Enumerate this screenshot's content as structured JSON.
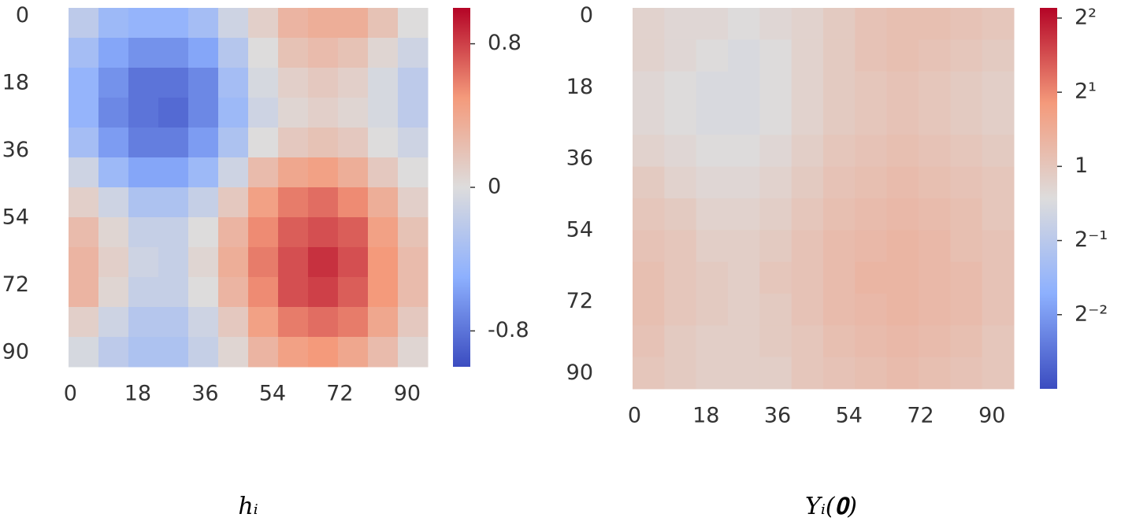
{
  "chart_data": [
    {
      "type": "heatmap",
      "title": "hᵢ",
      "colormap": "coolwarm",
      "y_inverted": true,
      "x": [
        4,
        12,
        20,
        28,
        36,
        44,
        52,
        60,
        68,
        76,
        84,
        92
      ],
      "y": [
        4,
        12,
        20,
        28,
        36,
        44,
        52,
        60,
        68,
        76,
        84,
        92
      ],
      "z": [
        [
          -0.2,
          -0.4,
          -0.45,
          -0.45,
          -0.35,
          -0.1,
          0.1,
          0.3,
          0.35,
          0.35,
          0.2,
          0.0
        ],
        [
          -0.35,
          -0.55,
          -0.65,
          -0.65,
          -0.55,
          -0.25,
          0.0,
          0.2,
          0.25,
          0.2,
          0.05,
          -0.1
        ],
        [
          -0.45,
          -0.65,
          -0.8,
          -0.8,
          -0.7,
          -0.35,
          -0.05,
          0.1,
          0.15,
          0.1,
          -0.05,
          -0.2
        ],
        [
          -0.45,
          -0.7,
          -0.8,
          -0.85,
          -0.7,
          -0.4,
          -0.1,
          0.05,
          0.1,
          0.05,
          -0.05,
          -0.2
        ],
        [
          -0.35,
          -0.6,
          -0.75,
          -0.75,
          -0.6,
          -0.3,
          0.0,
          0.15,
          0.2,
          0.15,
          0.0,
          -0.1
        ],
        [
          -0.1,
          -0.4,
          -0.55,
          -0.55,
          -0.4,
          -0.1,
          0.25,
          0.4,
          0.45,
          0.35,
          0.15,
          0.0
        ],
        [
          0.1,
          -0.1,
          -0.3,
          -0.3,
          -0.15,
          0.15,
          0.45,
          0.6,
          0.65,
          0.55,
          0.35,
          0.1
        ],
        [
          0.25,
          0.05,
          -0.15,
          -0.15,
          0.0,
          0.3,
          0.55,
          0.7,
          0.75,
          0.7,
          0.45,
          0.2
        ],
        [
          0.3,
          0.1,
          -0.1,
          -0.15,
          0.05,
          0.35,
          0.6,
          0.75,
          0.85,
          0.75,
          0.5,
          0.25
        ],
        [
          0.3,
          0.05,
          -0.15,
          -0.15,
          0.0,
          0.3,
          0.55,
          0.75,
          0.8,
          0.7,
          0.5,
          0.25
        ],
        [
          0.1,
          -0.1,
          -0.25,
          -0.25,
          -0.1,
          0.15,
          0.45,
          0.6,
          0.65,
          0.6,
          0.4,
          0.15
        ],
        [
          -0.05,
          -0.2,
          -0.3,
          -0.3,
          -0.15,
          0.05,
          0.3,
          0.45,
          0.5,
          0.4,
          0.25,
          0.05
        ]
      ],
      "xlim": [
        0,
        96
      ],
      "ylim": [
        0,
        96
      ],
      "xticks": [
        0,
        18,
        36,
        54,
        72,
        90
      ],
      "yticks": [
        0,
        18,
        36,
        54,
        72,
        90
      ],
      "colorbar": {
        "clim": [
          -1.0,
          1.0
        ],
        "log": false,
        "ticks": [
          -0.8,
          0,
          0.8
        ]
      }
    },
    {
      "type": "heatmap",
      "title": "Yᵢ(𝟎)",
      "colormap": "coolwarm",
      "y_inverted": true,
      "x": [
        4,
        12,
        20,
        28,
        36,
        44,
        52,
        60,
        68,
        76,
        84,
        92
      ],
      "y": [
        4,
        12,
        20,
        28,
        36,
        44,
        52,
        60,
        68,
        76,
        84,
        92
      ],
      "z": [
        [
          0.85,
          0.8,
          0.8,
          0.75,
          0.8,
          0.85,
          0.95,
          1.05,
          1.1,
          1.1,
          1.05,
          1.0
        ],
        [
          0.85,
          0.8,
          0.75,
          0.7,
          0.75,
          0.85,
          0.95,
          1.05,
          1.1,
          1.05,
          1.0,
          0.95
        ],
        [
          0.8,
          0.75,
          0.7,
          0.7,
          0.75,
          0.85,
          0.95,
          1.0,
          1.05,
          1.0,
          0.95,
          0.9
        ],
        [
          0.8,
          0.75,
          0.7,
          0.7,
          0.75,
          0.85,
          0.95,
          1.0,
          1.05,
          1.0,
          0.95,
          0.9
        ],
        [
          0.85,
          0.8,
          0.75,
          0.75,
          0.8,
          0.9,
          1.0,
          1.05,
          1.1,
          1.05,
          1.0,
          0.95
        ],
        [
          0.95,
          0.85,
          0.8,
          0.8,
          0.85,
          0.95,
          1.05,
          1.1,
          1.15,
          1.1,
          1.05,
          1.0
        ],
        [
          1.0,
          0.95,
          0.85,
          0.85,
          0.9,
          1.0,
          1.1,
          1.15,
          1.2,
          1.15,
          1.1,
          1.0
        ],
        [
          1.05,
          1.0,
          0.9,
          0.9,
          0.95,
          1.05,
          1.15,
          1.2,
          1.25,
          1.2,
          1.1,
          1.05
        ],
        [
          1.1,
          1.0,
          0.95,
          0.9,
          1.0,
          1.05,
          1.15,
          1.25,
          1.25,
          1.2,
          1.15,
          1.05
        ],
        [
          1.1,
          1.0,
          0.95,
          0.9,
          0.95,
          1.05,
          1.15,
          1.2,
          1.25,
          1.2,
          1.15,
          1.05
        ],
        [
          1.05,
          0.95,
          0.9,
          0.9,
          0.95,
          1.0,
          1.1,
          1.15,
          1.2,
          1.15,
          1.1,
          1.0
        ],
        [
          1.0,
          0.95,
          0.9,
          0.9,
          0.9,
          1.0,
          1.05,
          1.1,
          1.15,
          1.1,
          1.05,
          1.0
        ]
      ],
      "xlim": [
        0,
        96
      ],
      "ylim": [
        0,
        96
      ],
      "xticks": [
        0,
        18,
        36,
        54,
        72,
        90
      ],
      "yticks": [
        0,
        18,
        36,
        54,
        72,
        90
      ],
      "colorbar": {
        "clim": [
          0.125,
          4.4
        ],
        "log": true,
        "ticks": [
          {
            "value": 0.25,
            "label": "2⁻²"
          },
          {
            "value": 0.5,
            "label": "2⁻¹"
          },
          1,
          {
            "value": 2,
            "label": "2¹"
          },
          {
            "value": 4,
            "label": "2²"
          }
        ]
      }
    }
  ]
}
